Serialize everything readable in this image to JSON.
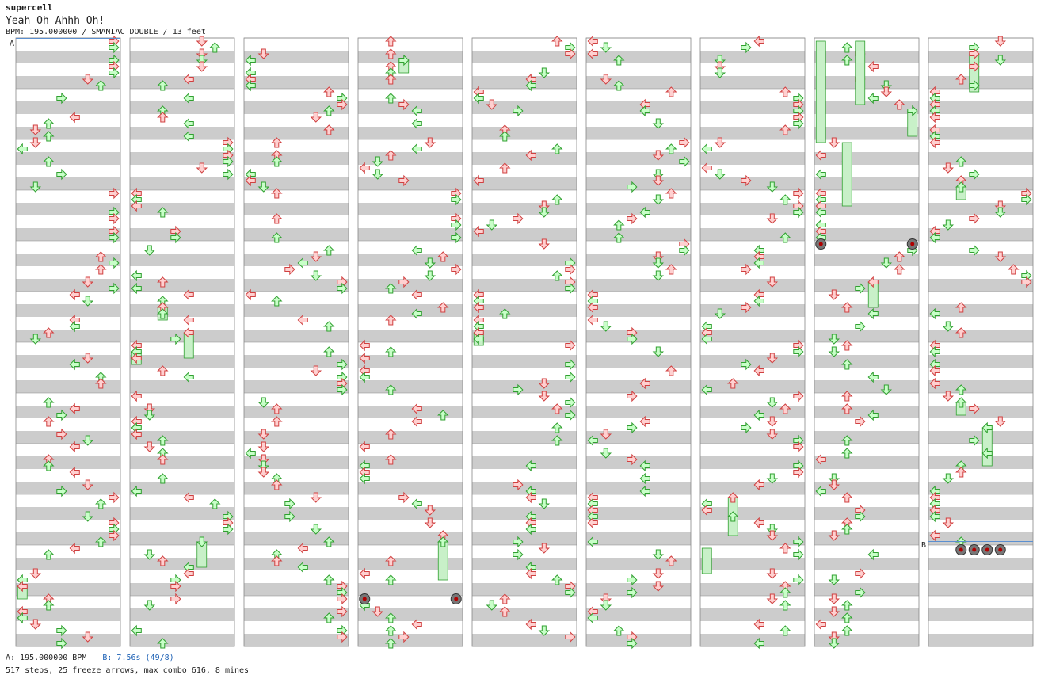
{
  "header": {
    "artist": "supercell",
    "title": "Yeah Oh Ahhh Oh!",
    "info": "BPM: 195.000000 / SMANIAC DOUBLE / 13 feet"
  },
  "markers": {
    "a": "A",
    "b": "B"
  },
  "footer": {
    "bpm_a": "A: 195.000000 BPM",
    "bpm_b": "B: 7.56s (49/8)",
    "stats": "517 steps, 25 freeze arrows, max combo 616, 8 mines"
  },
  "colors": {
    "stripe": "#cccccc",
    "note_red_fill": "#ffd0d0",
    "note_red_stroke": "#d04040",
    "note_green_fill": "#c8ffc8",
    "note_green_stroke": "#30a030",
    "freeze": "#c8f0c8",
    "mine": "#b00000",
    "marker_line": "#5b8fd0"
  },
  "chart_data": {
    "type": "step-chart",
    "columns": 9,
    "measures_per_column": 12,
    "lanes": 8,
    "total_steps": 517,
    "freeze_arrows": 25,
    "max_combo": 616,
    "mines": 8
  }
}
